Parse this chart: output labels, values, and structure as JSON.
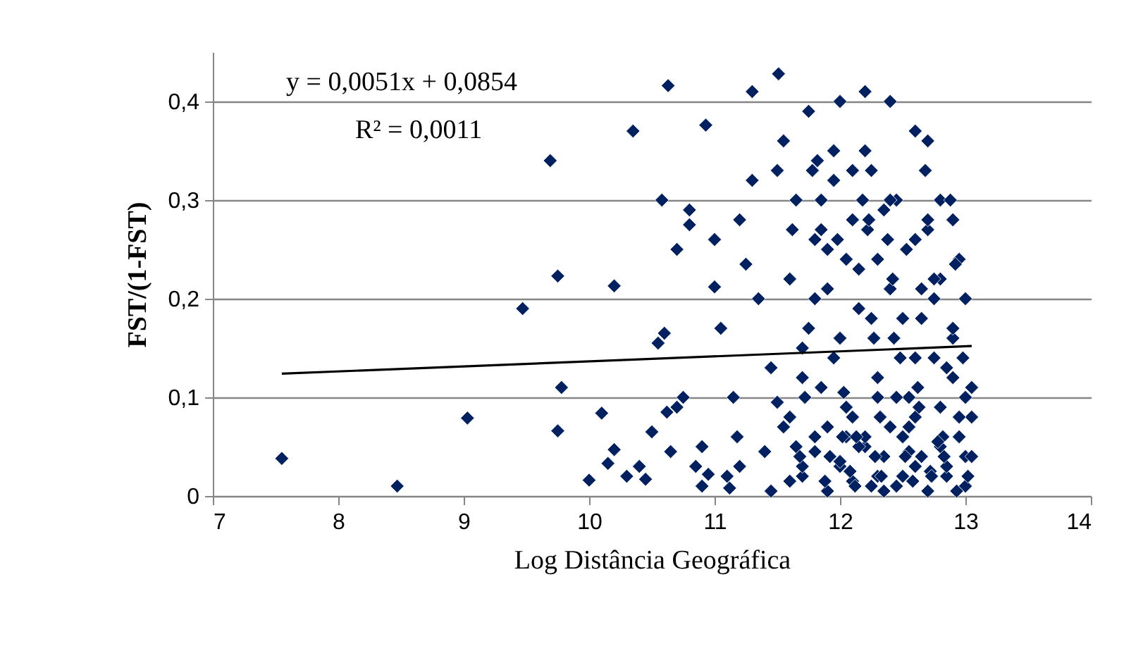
{
  "chart_data": {
    "type": "scatter",
    "xlabel": "Log Distância Geográfica",
    "ylabel": "FST/(1-FST)",
    "xlim": [
      7,
      14
    ],
    "xticks": [
      7,
      8,
      9,
      10,
      11,
      12,
      13,
      14
    ],
    "ylim": [
      0,
      0.45
    ],
    "yticks": [
      0,
      {
        "value": 0.1,
        "label": "0,1"
      },
      {
        "value": 0.2,
        "label": "0,2"
      },
      {
        "value": 0.3,
        "label": "0,3"
      },
      {
        "value": 0.4,
        "label": "0,4"
      }
    ],
    "grid": "y",
    "annotations": [
      "y = 0,0051x + 0,0854",
      "R² = 0,0011"
    ],
    "series": [
      {
        "type": "scatter",
        "marker": "diamond",
        "color": "#002060",
        "x": [
          7.55,
          8.47,
          9.03,
          9.47,
          9.69,
          9.75,
          9.78,
          9.75,
          10.1,
          10.2,
          10.15,
          10.2,
          10.0,
          10.3,
          10.35,
          10.4,
          10.45,
          10.5,
          10.55,
          10.58,
          10.63,
          10.6,
          10.62,
          10.7,
          10.65,
          10.75,
          10.7,
          10.8,
          10.8,
          10.85,
          10.9,
          10.93,
          10.95,
          10.9,
          11.0,
          11.0,
          11.05,
          11.1,
          11.12,
          11.15,
          11.2,
          11.18,
          11.25,
          11.2,
          11.3,
          11.3,
          11.35,
          11.4,
          11.45,
          11.5,
          11.51,
          11.55,
          11.5,
          11.45,
          11.6,
          11.6,
          11.65,
          11.7,
          11.7,
          11.75,
          11.8,
          11.8,
          11.85,
          11.9,
          11.9,
          11.95,
          12.0,
          12.0,
          12.05,
          12.1,
          12.1,
          12.15,
          12.2,
          12.2,
          12.25,
          12.3,
          12.3,
          12.35,
          12.4,
          12.4,
          12.45,
          12.5,
          12.5,
          12.55,
          12.6,
          12.6,
          12.65,
          12.7,
          12.7,
          12.75,
          12.8,
          12.8,
          12.85,
          12.9,
          12.9,
          12.95,
          13.0,
          13.0,
          13.05,
          11.65,
          11.75,
          11.85,
          11.95,
          12.05,
          12.15,
          12.25,
          12.35,
          12.45,
          12.55,
          12.65,
          12.75,
          12.85,
          12.95,
          13.05,
          11.7,
          11.8,
          11.9,
          12.0,
          12.1,
          12.2,
          12.3,
          12.4,
          12.5,
          12.6,
          12.7,
          12.8,
          12.9,
          13.0,
          11.6,
          11.9,
          12.1,
          12.3,
          12.5,
          12.7,
          12.9,
          11.8,
          12.0,
          12.2,
          12.4,
          12.6,
          12.8,
          13.0,
          11.7,
          12.05,
          12.35,
          12.65,
          12.95,
          11.85,
          12.15,
          12.45,
          12.75,
          13.05,
          11.55,
          11.95,
          12.25,
          12.55,
          12.85,
          12.6,
          11.62,
          11.72,
          11.82,
          11.92,
          12.02,
          12.12,
          12.22,
          12.32,
          12.42,
          12.52,
          12.62,
          12.72,
          12.82,
          12.92,
          13.02,
          11.68,
          11.78,
          11.88,
          11.98,
          12.08,
          12.18,
          12.28,
          12.38,
          12.48,
          12.58,
          12.68,
          12.78,
          12.88,
          12.98,
          12.03,
          12.13,
          12.23,
          12.33,
          12.43,
          12.53,
          12.63,
          12.73,
          12.83,
          12.93,
          12.27
        ],
        "values": [
          0.038,
          0.01,
          0.079,
          0.19,
          0.34,
          0.223,
          0.11,
          0.066,
          0.084,
          0.213,
          0.033,
          0.047,
          0.016,
          0.02,
          0.37,
          0.03,
          0.017,
          0.065,
          0.155,
          0.3,
          0.416,
          0.165,
          0.085,
          0.09,
          0.045,
          0.1,
          0.25,
          0.275,
          0.29,
          0.03,
          0.05,
          0.376,
          0.022,
          0.01,
          0.26,
          0.212,
          0.17,
          0.02,
          0.008,
          0.1,
          0.03,
          0.06,
          0.235,
          0.28,
          0.41,
          0.32,
          0.2,
          0.045,
          0.13,
          0.095,
          0.428,
          0.36,
          0.33,
          0.005,
          0.22,
          0.08,
          0.3,
          0.02,
          0.15,
          0.39,
          0.06,
          0.26,
          0.11,
          0.005,
          0.21,
          0.35,
          0.03,
          0.4,
          0.09,
          0.28,
          0.015,
          0.19,
          0.41,
          0.05,
          0.33,
          0.12,
          0.24,
          0.005,
          0.4,
          0.07,
          0.3,
          0.02,
          0.18,
          0.1,
          0.37,
          0.26,
          0.04,
          0.005,
          0.36,
          0.2,
          0.09,
          0.3,
          0.02,
          0.28,
          0.12,
          0.06,
          0.2,
          0.01,
          0.08,
          0.05,
          0.17,
          0.27,
          0.14,
          0.06,
          0.23,
          0.01,
          0.29,
          0.1,
          0.045,
          0.21,
          0.14,
          0.03,
          0.24,
          0.11,
          0.12,
          0.045,
          0.25,
          0.16,
          0.08,
          0.35,
          0.02,
          0.21,
          0.06,
          0.14,
          0.27,
          0.05,
          0.16,
          0.04,
          0.015,
          0.07,
          0.33,
          0.1,
          0.06,
          0.28,
          0.17,
          0.2,
          0.035,
          0.06,
          0.3,
          0.08,
          0.22,
          0.1,
          0.03,
          0.24,
          0.04,
          0.18,
          0.08,
          0.3,
          0.05,
          0.01,
          0.22,
          0.04,
          0.07,
          0.32,
          0.18,
          0.07,
          0.13,
          0.03,
          0.27,
          0.1,
          0.34,
          0.04,
          0.06,
          0.01,
          0.27,
          0.08,
          0.22,
          0.04,
          0.11,
          0.025,
          0.06,
          0.235,
          0.02,
          0.04,
          0.33,
          0.015,
          0.26,
          0.025,
          0.3,
          0.04,
          0.26,
          0.14,
          0.015,
          0.33,
          0.055,
          0.3,
          0.14,
          0.105,
          0.06,
          0.28,
          0.02,
          0.16,
          0.25,
          0.09,
          0.02,
          0.04,
          0.005,
          0.16
        ]
      },
      {
        "type": "line",
        "color": "#000000",
        "marker": "none",
        "line_style": "solid",
        "x": [
          7.55,
          13.05
        ],
        "values": [
          0.124,
          0.152
        ]
      }
    ]
  }
}
